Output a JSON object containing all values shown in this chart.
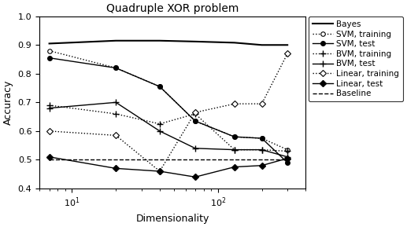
{
  "title": "Quadruple XOR problem",
  "xlabel": "Dimensionality",
  "ylabel": "Accuracy",
  "xlim": [
    6,
    400
  ],
  "ylim": [
    0.4,
    1.0
  ],
  "x": [
    7,
    20,
    40,
    70,
    130,
    200,
    300
  ],
  "bayes": [
    0.905,
    0.915,
    0.915,
    0.912,
    0.908,
    0.9,
    0.9
  ],
  "svm_training": [
    0.88,
    0.82,
    0.755,
    0.635,
    0.58,
    0.575,
    0.535
  ],
  "svm_test": [
    0.855,
    0.82,
    0.755,
    0.635,
    0.58,
    0.575,
    0.49
  ],
  "bvm_training": [
    0.69,
    0.66,
    0.625,
    0.66,
    0.535,
    0.535,
    0.53
  ],
  "bvm_test": [
    0.68,
    0.7,
    0.6,
    0.54,
    0.535,
    0.535,
    0.51
  ],
  "linear_training": [
    0.6,
    0.585,
    0.46,
    0.665,
    0.695,
    0.695,
    0.87
  ],
  "linear_test": [
    0.51,
    0.47,
    0.46,
    0.44,
    0.475,
    0.48,
    0.505
  ],
  "baseline": [
    0.5,
    0.5,
    0.5,
    0.5,
    0.5,
    0.5,
    0.5
  ],
  "yticks": [
    0.4,
    0.5,
    0.6,
    0.7,
    0.8,
    0.9,
    1.0
  ]
}
